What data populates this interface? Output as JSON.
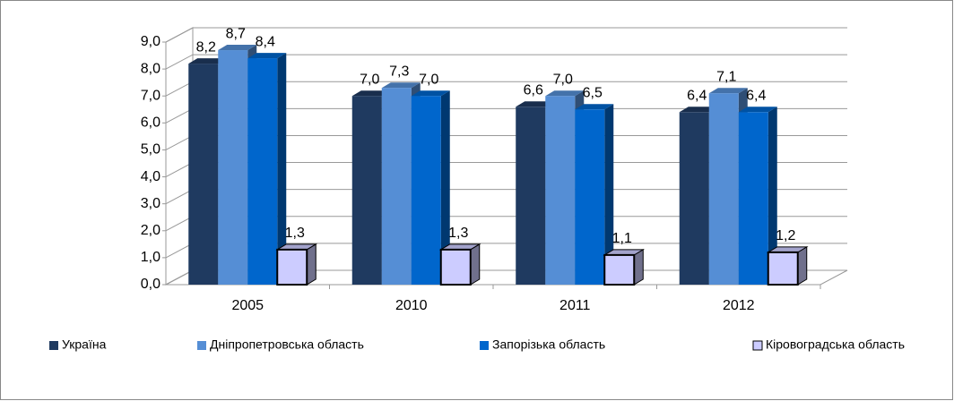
{
  "chart_data": {
    "type": "bar3d",
    "categories": [
      "2005",
      "2010",
      "2011",
      "2012"
    ],
    "series": [
      {
        "name": "Україна",
        "color": "#1f3a60",
        "values": [
          8.2,
          7.0,
          6.6,
          6.4
        ],
        "value_labels": [
          "8,2",
          "7,0",
          "6,6",
          "6,4"
        ]
      },
      {
        "name": "Дніпропетровська область",
        "color": "#558ed5",
        "values": [
          8.7,
          7.3,
          7.0,
          7.1
        ],
        "value_labels": [
          "8,7",
          "7,3",
          "7,0",
          "7,1"
        ]
      },
      {
        "name": "Запорізька область",
        "color": "#0066cc",
        "values": [
          8.4,
          7.0,
          6.5,
          6.4
        ],
        "value_labels": [
          "8,4",
          "7,0",
          "6,5",
          "6,4"
        ]
      },
      {
        "name": "Кіровоградська область",
        "color": "#ccccff",
        "values": [
          1.3,
          1.3,
          1.1,
          1.2
        ],
        "value_labels": [
          "1,3",
          "1,3",
          "1,1",
          "1,2"
        ]
      }
    ],
    "ylim": [
      0,
      9
    ],
    "yticks": [
      {
        "value": 0,
        "label": "0,0"
      },
      {
        "value": 1,
        "label": "1,0"
      },
      {
        "value": 2,
        "label": "2,0"
      },
      {
        "value": 3,
        "label": "3,0"
      },
      {
        "value": 4,
        "label": "4,0"
      },
      {
        "value": 5,
        "label": "5,0"
      },
      {
        "value": 6,
        "label": "6,0"
      },
      {
        "value": 7,
        "label": "7,0"
      },
      {
        "value": 8,
        "label": "8,0"
      },
      {
        "value": 9,
        "label": "9,0"
      }
    ],
    "grid": true,
    "legend": "bottom"
  }
}
